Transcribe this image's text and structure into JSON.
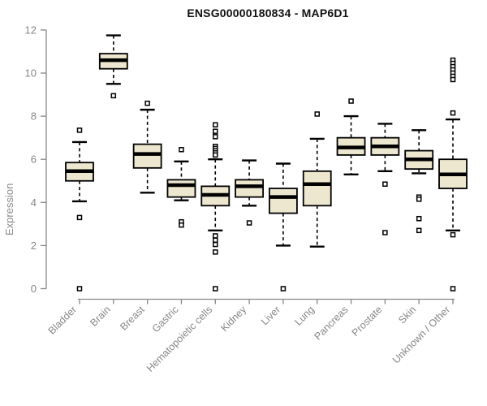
{
  "chart_data": {
    "type": "boxplot",
    "title": "ENSG00000180834 - MAP6D1",
    "xlabel": "",
    "ylabel": "Expression",
    "ylim": [
      0,
      12
    ],
    "yticks": [
      0,
      2,
      4,
      6,
      8,
      10,
      12
    ],
    "grid": false,
    "legend": "none",
    "colors": {
      "box_fill": "#EDE7CF",
      "box_stroke": "#000000",
      "median": "#000000",
      "whisker": "#000000",
      "axis": "#878787",
      "tick_text": "#878787",
      "title_text": "#111111"
    },
    "categories": [
      "Bladder",
      "Brain",
      "Breast",
      "Gastric",
      "Hematopoietic cells",
      "Kidney",
      "Liver",
      "Lung",
      "Pancreas",
      "Prostate",
      "Skin",
      "Unknown / Other"
    ],
    "series": [
      {
        "name": "Bladder",
        "whisker_low": 4.05,
        "q1": 5.0,
        "median": 5.45,
        "q3": 5.85,
        "whisker_high": 6.8,
        "outliers": [
          7.35,
          3.3,
          0
        ]
      },
      {
        "name": "Brain",
        "whisker_low": 9.5,
        "q1": 10.2,
        "median": 10.6,
        "q3": 10.9,
        "whisker_high": 11.75,
        "outliers": [
          8.95
        ]
      },
      {
        "name": "Breast",
        "whisker_low": 4.45,
        "q1": 5.6,
        "median": 6.25,
        "q3": 6.7,
        "whisker_high": 8.3,
        "outliers": [
          8.6
        ]
      },
      {
        "name": "Gastric",
        "whisker_low": 4.1,
        "q1": 4.25,
        "median": 4.8,
        "q3": 5.05,
        "whisker_high": 5.9,
        "outliers": [
          6.45,
          3.1,
          2.95
        ]
      },
      {
        "name": "Hematopoietic cells",
        "whisker_low": 2.7,
        "q1": 3.85,
        "median": 4.35,
        "q3": 4.75,
        "whisker_high": 6.0,
        "outliers": [
          7.6,
          7.3,
          7.05,
          6.6,
          6.5,
          6.4,
          6.3,
          6.2,
          2.45,
          2.25,
          2.05,
          1.7,
          0
        ]
      },
      {
        "name": "Kidney",
        "whisker_low": 3.85,
        "q1": 4.25,
        "median": 4.75,
        "q3": 5.05,
        "whisker_high": 5.95,
        "outliers": [
          3.05
        ]
      },
      {
        "name": "Liver",
        "whisker_low": 2.0,
        "q1": 3.5,
        "median": 4.25,
        "q3": 4.65,
        "whisker_high": 5.8,
        "outliers": [
          0
        ]
      },
      {
        "name": "Lung",
        "whisker_low": 1.95,
        "q1": 3.85,
        "median": 4.85,
        "q3": 5.45,
        "whisker_high": 6.95,
        "outliers": [
          8.1
        ]
      },
      {
        "name": "Pancreas",
        "whisker_low": 5.3,
        "q1": 6.2,
        "median": 6.55,
        "q3": 7.0,
        "whisker_high": 8.0,
        "outliers": [
          8.7
        ]
      },
      {
        "name": "Prostate",
        "whisker_low": 5.45,
        "q1": 6.2,
        "median": 6.6,
        "q3": 7.0,
        "whisker_high": 7.65,
        "outliers": [
          4.85,
          2.6
        ]
      },
      {
        "name": "Skin",
        "whisker_low": 5.35,
        "q1": 5.55,
        "median": 6.0,
        "q3": 6.4,
        "whisker_high": 7.35,
        "outliers": [
          4.25,
          4.15,
          3.25,
          2.7
        ]
      },
      {
        "name": "Unknown / Other",
        "whisker_low": 2.7,
        "q1": 4.65,
        "median": 5.3,
        "q3": 6.0,
        "whisker_high": 7.85,
        "outliers": [
          10.6,
          10.45,
          10.3,
          10.15,
          10.0,
          9.85,
          9.7,
          8.15,
          2.5,
          0
        ]
      }
    ]
  }
}
